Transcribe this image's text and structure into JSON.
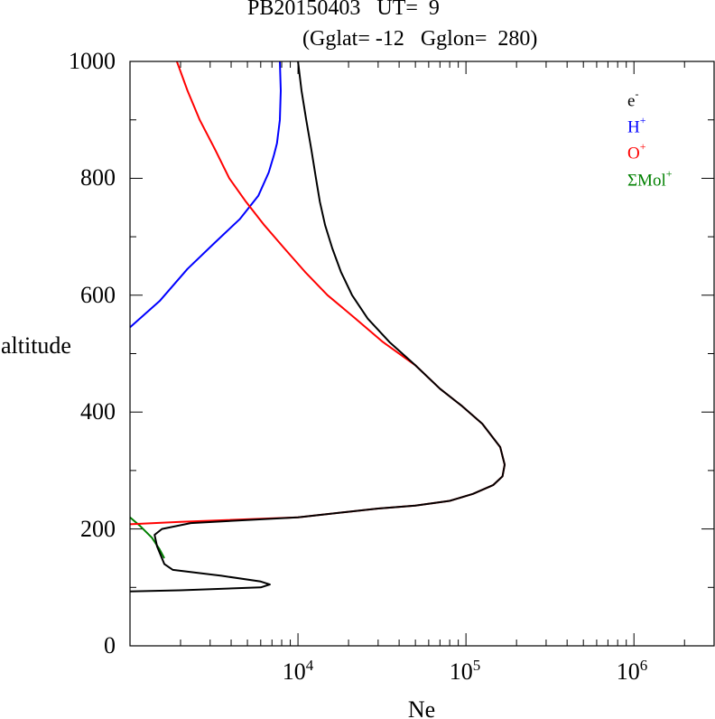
{
  "chart_data": {
    "type": "line",
    "title": "PB20150403   UT=  9",
    "subtitle": "(Gglat= -12   Gglon=  280)",
    "xlabel": "Ne",
    "ylabel": "altitude",
    "x_scale": "log",
    "xlim": [
      1000,
      3000000
    ],
    "ylim": [
      0,
      1000
    ],
    "x_ticks": [
      {
        "base": "10",
        "exp": "4",
        "value": 10000
      },
      {
        "base": "10",
        "exp": "5",
        "value": 100000
      },
      {
        "base": "10",
        "exp": "6",
        "value": 1000000
      }
    ],
    "y_ticks": [
      "0",
      "200",
      "400",
      "600",
      "800",
      "1000"
    ],
    "grid": false,
    "legend_position": "top-right",
    "series": [
      {
        "name": "e-",
        "label_base": "e",
        "label_sup": "-",
        "color": "#000000",
        "points": [
          [
            1000,
            93
          ],
          [
            2000,
            95
          ],
          [
            6000,
            100
          ],
          [
            6800,
            105
          ],
          [
            6000,
            110
          ],
          [
            3500,
            120
          ],
          [
            1800,
            130
          ],
          [
            1600,
            140
          ],
          [
            1450,
            170
          ],
          [
            1400,
            190
          ],
          [
            1550,
            200
          ],
          [
            2300,
            210
          ],
          [
            10000,
            220
          ],
          [
            30000,
            235
          ],
          [
            50000,
            240
          ],
          [
            80000,
            248
          ],
          [
            110000,
            260
          ],
          [
            145000,
            275
          ],
          [
            165000,
            290
          ],
          [
            170000,
            310
          ],
          [
            160000,
            340
          ],
          [
            125000,
            380
          ],
          [
            95000,
            410
          ],
          [
            70000,
            440
          ],
          [
            50000,
            480
          ],
          [
            35000,
            520
          ],
          [
            26000,
            560
          ],
          [
            21000,
            600
          ],
          [
            18000,
            640
          ],
          [
            16000,
            680
          ],
          [
            14500,
            720
          ],
          [
            13500,
            760
          ],
          [
            12800,
            800
          ],
          [
            12000,
            850
          ],
          [
            11200,
            900
          ],
          [
            10500,
            950
          ],
          [
            10000,
            1000
          ]
        ]
      },
      {
        "name": "H+",
        "label_base": "H",
        "label_sup": "+",
        "color": "#0000ff",
        "points": [
          [
            1000,
            545
          ],
          [
            1500,
            590
          ],
          [
            2200,
            645
          ],
          [
            3200,
            690
          ],
          [
            4500,
            730
          ],
          [
            5800,
            770
          ],
          [
            6700,
            810
          ],
          [
            7200,
            840
          ],
          [
            7500,
            860
          ],
          [
            7800,
            900
          ],
          [
            7900,
            950
          ],
          [
            7800,
            1000
          ]
        ]
      },
      {
        "name": "O+",
        "label_base": "O",
        "label_sup": "+",
        "color": "#ff0000",
        "points": [
          [
            1000,
            208
          ],
          [
            2000,
            212
          ],
          [
            10000,
            220
          ],
          [
            30000,
            235
          ],
          [
            50000,
            240
          ],
          [
            80000,
            248
          ],
          [
            110000,
            260
          ],
          [
            145000,
            275
          ],
          [
            165000,
            290
          ],
          [
            170000,
            310
          ],
          [
            160000,
            340
          ],
          [
            125000,
            380
          ],
          [
            95000,
            410
          ],
          [
            70000,
            440
          ],
          [
            50000,
            480
          ],
          [
            32000,
            520
          ],
          [
            22000,
            560
          ],
          [
            15000,
            600
          ],
          [
            11000,
            640
          ],
          [
            8300,
            680
          ],
          [
            6300,
            720
          ],
          [
            4900,
            760
          ],
          [
            3900,
            800
          ],
          [
            3200,
            850
          ],
          [
            2600,
            900
          ],
          [
            2200,
            950
          ],
          [
            1900,
            1000
          ]
        ]
      },
      {
        "name": "ΣMol+",
        "label_base": "ΣMol",
        "label_sup": "+",
        "color": "#008000",
        "points": [
          [
            1000,
            220
          ],
          [
            1150,
            205
          ],
          [
            1350,
            185
          ],
          [
            1500,
            165
          ],
          [
            1600,
            150
          ]
        ]
      }
    ]
  }
}
